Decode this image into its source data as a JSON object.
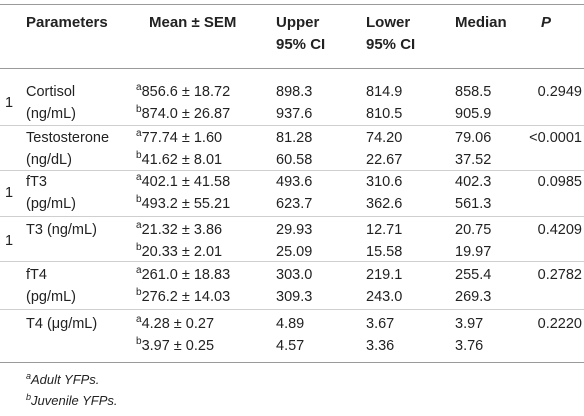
{
  "table": {
    "headers": {
      "parameters": "Parameters",
      "mean": "Mean ± SEM",
      "upper_1": "Upper",
      "upper_2": "95% CI",
      "lower_1": "Lower",
      "lower_2": "95% CI",
      "median": "Median",
      "p": "P"
    },
    "rows": [
      {
        "margin_mark": "1",
        "param_1": "Cortisol",
        "param_2": "(ng/mL)",
        "mean_a_sup": "a",
        "mean_a": "856.6 ± 18.72",
        "mean_b_sup": "b",
        "mean_b": "874.0 ± 26.87",
        "upper_a": "898.3",
        "upper_b": "937.6",
        "lower_a": "814.9",
        "lower_b": "810.5",
        "median_a": "858.5",
        "median_b": "905.9",
        "p": "0.2949"
      },
      {
        "margin_mark": "",
        "param_1": "Testosterone",
        "param_2": "(ng/dL)",
        "mean_a_sup": "a",
        "mean_a": "77.74 ± 1.60",
        "mean_b_sup": "b",
        "mean_b": "41.62 ± 8.01",
        "upper_a": "81.28",
        "upper_b": "60.58",
        "lower_a": "74.20",
        "lower_b": "22.67",
        "median_a": "79.06",
        "median_b": "37.52",
        "p": "<0.0001"
      },
      {
        "margin_mark": "1",
        "param_1": "fT3",
        "param_2": "(pg/mL)",
        "mean_a_sup": "a",
        "mean_a": "402.1 ± 41.58",
        "mean_b_sup": "b",
        "mean_b": "493.2 ± 55.21",
        "upper_a": "493.6",
        "upper_b": "623.7",
        "lower_a": "310.6",
        "lower_b": "362.6",
        "median_a": "402.3",
        "median_b": "561.3",
        "p": "0.0985"
      },
      {
        "margin_mark": "1",
        "param_1": "T3 (ng/mL)",
        "param_2": "",
        "mean_a_sup": "a",
        "mean_a": "21.32 ± 3.86",
        "mean_b_sup": "b",
        "mean_b": "20.33 ± 2.01",
        "upper_a": "29.93",
        "upper_b": "25.09",
        "lower_a": "12.71",
        "lower_b": "15.58",
        "median_a": "20.75",
        "median_b": "19.97",
        "p": "0.4209"
      },
      {
        "margin_mark": "",
        "param_1": "fT4",
        "param_2": "(pg/mL)",
        "mean_a_sup": "a",
        "mean_a": "261.0 ± 18.83",
        "mean_b_sup": "b",
        "mean_b": "276.2 ± 14.03",
        "upper_a": "303.0",
        "upper_b": "309.3",
        "lower_a": "219.1",
        "lower_b": "243.0",
        "median_a": "255.4",
        "median_b": "269.3",
        "p": "0.2782"
      },
      {
        "margin_mark": "",
        "param_1": "T4 (μg/mL)",
        "param_2": "",
        "mean_a_sup": "a",
        "mean_a": "4.28 ± 0.27",
        "mean_b_sup": "b",
        "mean_b": "3.97 ± 0.25",
        "upper_a": "4.89",
        "upper_b": "4.57",
        "lower_a": "3.67",
        "lower_b": "3.36",
        "median_a": "3.97",
        "median_b": "3.76",
        "p": "0.2220"
      }
    ]
  },
  "footnotes": [
    {
      "sup": "a",
      "text": "Adult YFPs."
    },
    {
      "sup": "b",
      "text": "Juvenile YFPs."
    }
  ]
}
